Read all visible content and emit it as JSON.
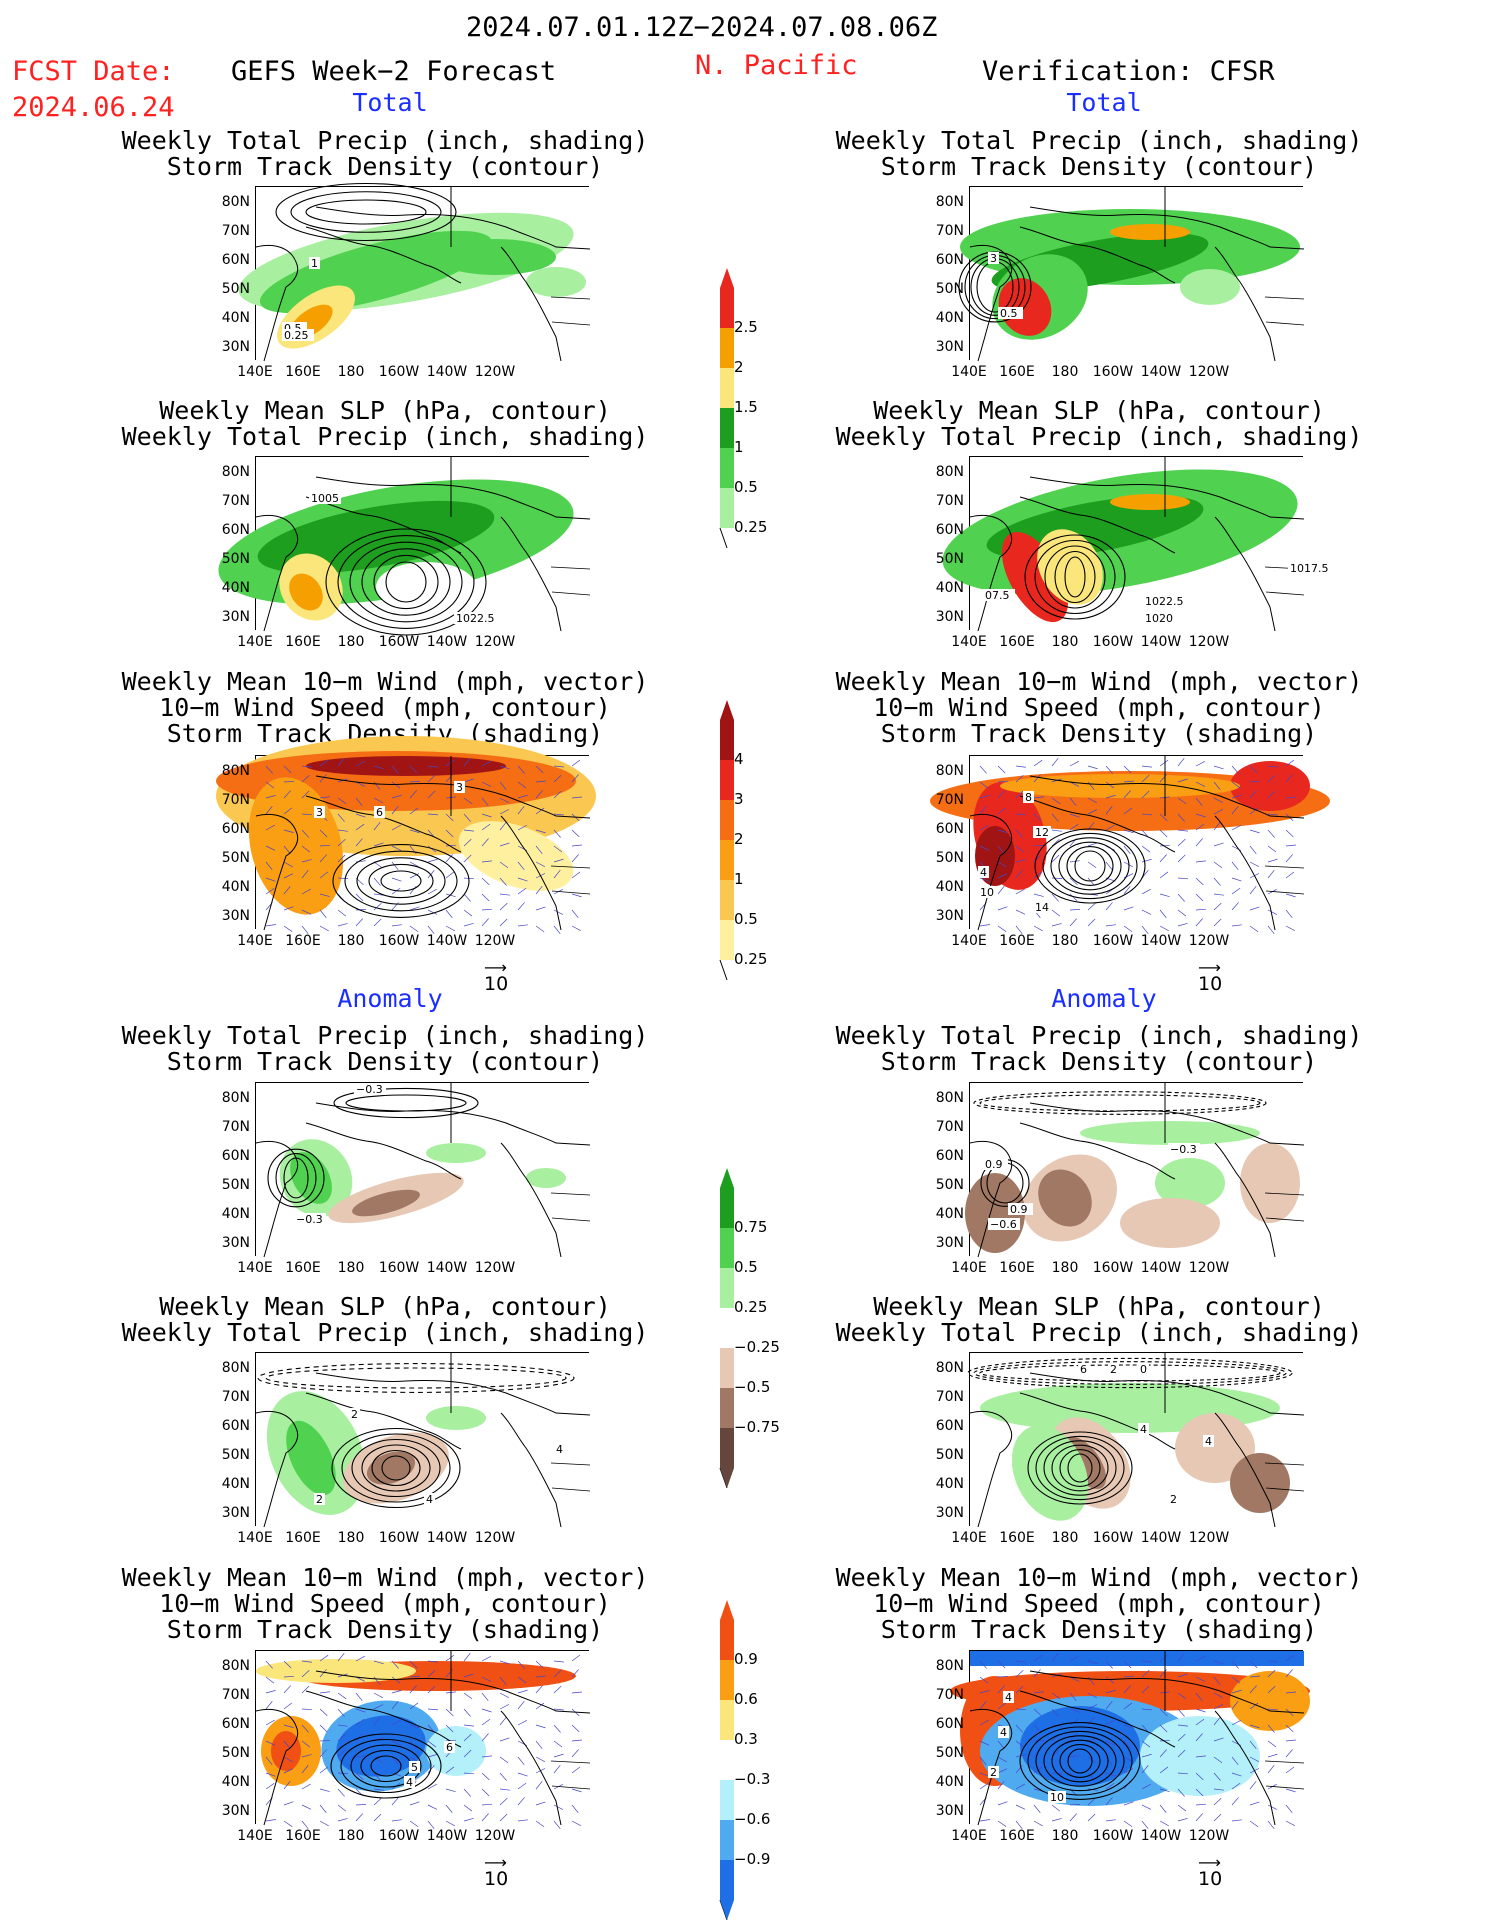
{
  "header": {
    "date_range": "2024.07.01.12Z−2024.07.08.06Z",
    "fcst_label": "FCST Date:",
    "fcst_date": "2024.06.24",
    "left_title": "GEFS Week−2 Forecast",
    "region": "N. Pacific",
    "right_title": "Verification: CFSR"
  },
  "sections": {
    "total": "Total",
    "anomaly": "Anomaly"
  },
  "titles": {
    "precip_storm": [
      "Weekly Total Precip (inch, shading)",
      "Storm Track Density (contour)"
    ],
    "slp_precip": [
      "Weekly Mean SLP (hPa, contour)",
      "Weekly Total Precip (inch, shading)"
    ],
    "wind_storm": [
      "Weekly Mean 10−m Wind (mph, vector)",
      "10−m Wind Speed (mph, contour)",
      "Storm Track Density (shading)"
    ]
  },
  "axes": {
    "lat": [
      "80N",
      "70N",
      "60N",
      "50N",
      "40N",
      "30N"
    ],
    "lon": [
      "140E",
      "160E",
      "180",
      "160W",
      "140W",
      "120W"
    ]
  },
  "vector_ref": "10",
  "colorbars": {
    "precip_total": {
      "labels": [
        "2.5",
        "2",
        "1.5",
        "1",
        "0.5",
        "0.25"
      ],
      "colors": [
        "#e8281e",
        "#f5a000",
        "#fae67a",
        "#1e9e1e",
        "#50d250",
        "#a8f0a0"
      ]
    },
    "storm_total": {
      "labels": [
        "4",
        "3",
        "2",
        "1",
        "0.5",
        "0.25"
      ],
      "colors": [
        "#a01414",
        "#e8281e",
        "#f56e14",
        "#fa9e14",
        "#fac850",
        "#fff0a0"
      ]
    },
    "precip_anom": {
      "labels": [
        "0.75",
        "0.5",
        "0.25",
        "−0.25",
        "−0.5",
        "−0.75"
      ],
      "colors": [
        "#1e9e1e",
        "#50d250",
        "#a8f0a0",
        "#ffffff",
        "#e6c8b4",
        "#a07864",
        "#64463c"
      ]
    },
    "storm_anom": {
      "labels": [
        "0.9",
        "0.6",
        "0.3",
        "−0.3",
        "−0.6",
        "−0.9"
      ],
      "colors": [
        "#f05014",
        "#fa9e14",
        "#fae67a",
        "#ffffff",
        "#b4f0fa",
        "#50aaf0",
        "#1e6ee6"
      ]
    },
    "contour_labels": {
      "p1": [
        "1",
        "0.5",
        "0.25"
      ],
      "p2": [
        "1005",
        "1022.5"
      ],
      "p3": [
        "3",
        "3",
        "6"
      ],
      "p4": [
        "−0.3",
        "−0.3"
      ],
      "p5": [
        "2",
        "4",
        "2",
        "4"
      ],
      "p6": [
        "5",
        "4",
        "6"
      ],
      "v1": [
        "3",
        "0.5"
      ],
      "v2": [
        "1017.5",
        "1022.5",
        "1020",
        "07.5"
      ],
      "v3": [
        "8",
        "12",
        "14",
        "10",
        "4"
      ],
      "v4": [
        "0.9",
        "−0.3",
        "−0.6",
        "0.9"
      ],
      "v5": [
        "4",
        "2",
        "4",
        "6",
        "2",
        "0"
      ],
      "v6": [
        "4",
        "4",
        "2",
        "10"
      ]
    }
  }
}
